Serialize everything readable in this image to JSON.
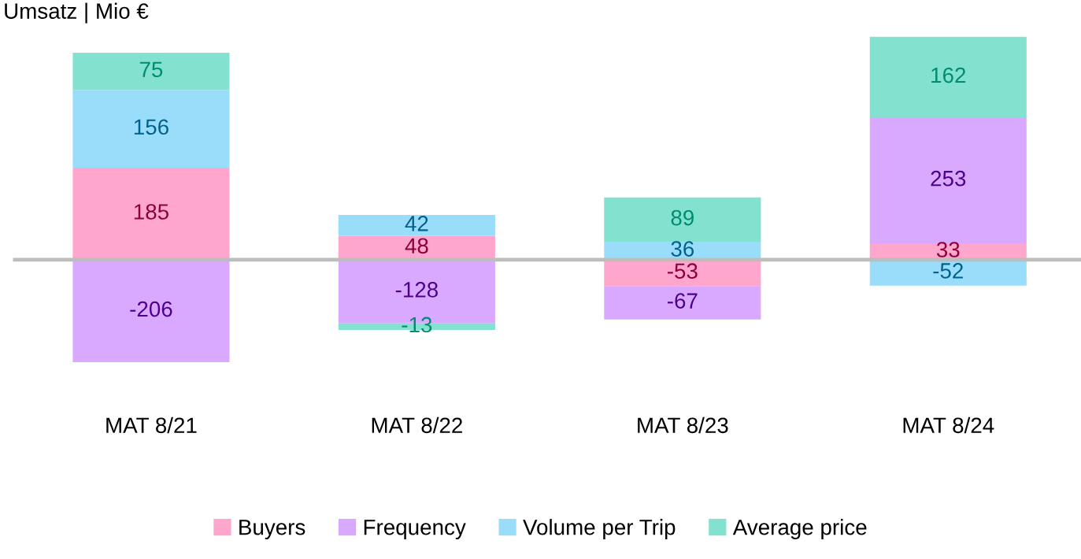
{
  "chart_data": {
    "type": "bar",
    "title": "Umsatz | Mio €",
    "stacked": true,
    "data_labels": true,
    "legend": "bottom",
    "categories": [
      "MAT 8/21",
      "MAT 8/22",
      "MAT 8/23",
      "MAT 8/24"
    ],
    "series": [
      {
        "name": "Buyers",
        "color": "#ffa6cc",
        "values": [
          185,
          48,
          -53,
          33
        ]
      },
      {
        "name": "Frequency",
        "color": "#d9a9ff",
        "values": [
          -206,
          -128,
          -67,
          253
        ]
      },
      {
        "name": "Volume per Trip",
        "color": "#99ddfb",
        "values": [
          156,
          42,
          36,
          -52
        ]
      },
      {
        "name": "Average price",
        "color": "#83e1cf",
        "values": [
          75,
          -13,
          89,
          162
        ]
      }
    ]
  }
}
